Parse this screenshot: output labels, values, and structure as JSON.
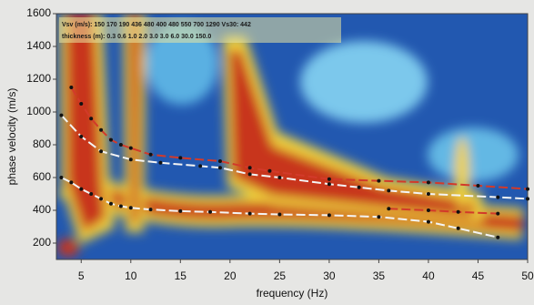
{
  "chart_data": {
    "type": "line",
    "xlabel": "frequency (Hz)",
    "ylabel": "phase velocity (m/s)",
    "annotations": [
      "Vsv (m/s): 150  170  190  436  480  400  480  550  700  1290  Vs30: 442",
      "thickness (m): 0.3  0.6  1.0  2.0  3.0  3.0  6.0  30.0  150.0"
    ],
    "xlim": [
      2.5,
      50
    ],
    "xticks": [
      5,
      10,
      15,
      20,
      25,
      30,
      35,
      40,
      45,
      50
    ],
    "ylim": [
      100,
      1600
    ],
    "yticks": [
      200,
      400,
      600,
      800,
      1000,
      1200,
      1400,
      1600
    ],
    "series": [
      {
        "color": "#f4f4f4",
        "x": [
          3,
          4,
          5,
          6,
          7,
          8,
          9,
          10,
          12,
          15,
          18,
          22,
          25,
          30,
          35,
          40,
          43,
          47
        ],
        "values": [
          600,
          570,
          530,
          500,
          470,
          440,
          425,
          415,
          405,
          395,
          390,
          380,
          375,
          370,
          360,
          330,
          290,
          235
        ]
      },
      {
        "color": "#d23a2a",
        "x": [
          4,
          5,
          6,
          7,
          8,
          9,
          10,
          12,
          15,
          19,
          22,
          24,
          30,
          35,
          40,
          45,
          50
        ],
        "values": [
          1150,
          1050,
          960,
          890,
          830,
          800,
          780,
          740,
          720,
          700,
          660,
          640,
          590,
          580,
          570,
          550,
          530
        ]
      },
      {
        "color": "#f4f4f4",
        "x": [
          3,
          5,
          7,
          10,
          13,
          17,
          19,
          22,
          25,
          30,
          33,
          36,
          40,
          47,
          50
        ],
        "values": [
          980,
          850,
          760,
          710,
          690,
          670,
          660,
          620,
          600,
          560,
          540,
          520,
          500,
          480,
          470
        ]
      },
      {
        "color": "#d23a2a",
        "x": [
          36,
          40,
          43,
          47
        ],
        "values": [
          410,
          400,
          390,
          380
        ]
      }
    ]
  }
}
